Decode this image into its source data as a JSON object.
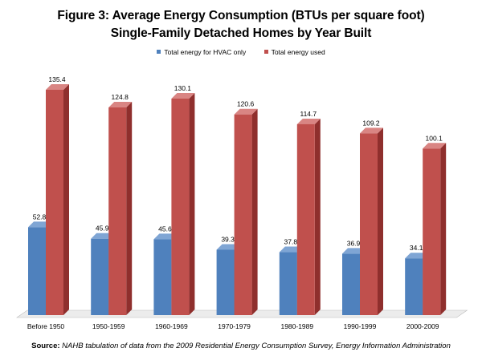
{
  "title_line1": "Figure 3: Average Energy Consumption (BTUs per square foot)",
  "title_line2": "Single-Family Detached Homes by Year Built",
  "source": {
    "label": "Source:",
    "text": "NAHB tabulation of data from the 2009 Residential Energy Consumption Survey, Energy Information Administration"
  },
  "colors": {
    "hvac": "#4f81bd",
    "hvac_dark": "#345d8f",
    "hvac_top": "#7fa5d4",
    "total": "#c0504d",
    "total_dark": "#8f2f2d",
    "total_top": "#d98583",
    "floor": "#ececec"
  },
  "chart_data": {
    "type": "bar",
    "style": "3d-clustered",
    "title": "Figure 3: Average Energy Consumption (BTUs per square foot) Single-Family Detached Homes by Year Built",
    "categories": [
      "Before 1950",
      "1950-1959",
      "1960-1969",
      "1970-1979",
      "1980-1989",
      "1990-1999",
      "2000-2009"
    ],
    "series": [
      {
        "name": "Total energy for HVAC only",
        "values": [
          52.8,
          45.9,
          45.6,
          39.3,
          37.8,
          36.9,
          34.1
        ]
      },
      {
        "name": "Total energy used",
        "values": [
          135.4,
          124.8,
          130.1,
          120.6,
          114.7,
          109.2,
          100.1
        ]
      }
    ],
    "ylim": [
      0,
      140
    ],
    "legend": "top-center",
    "grid": false,
    "data_labels": true
  }
}
